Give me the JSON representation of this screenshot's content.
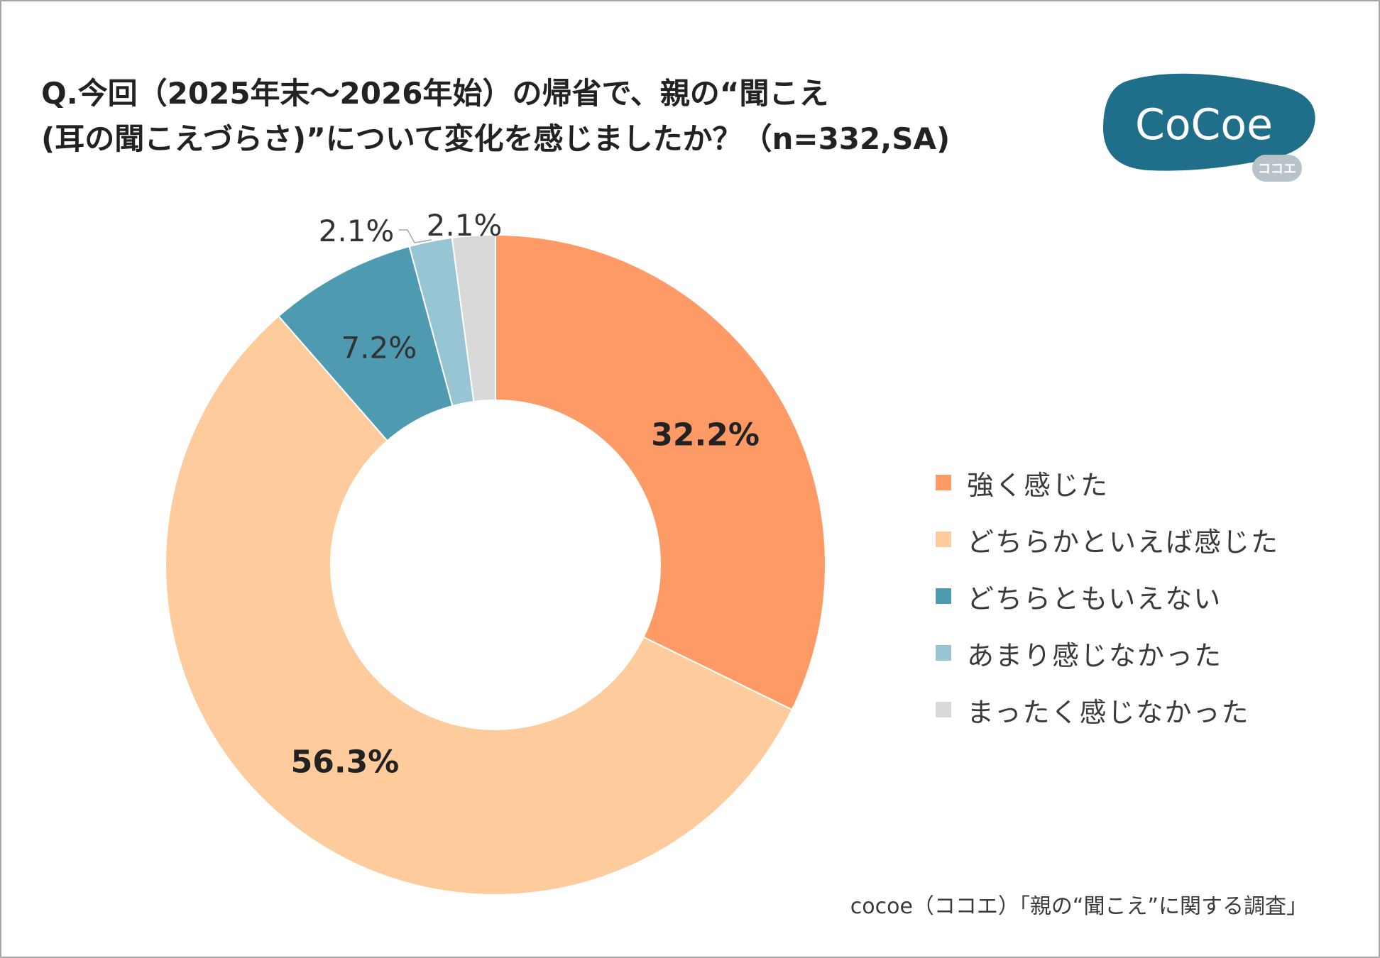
{
  "title": {
    "line1": "Q.今回（2025年末～2026年始）の帰省で、親の“聞こえ",
    "line2": "(耳の聞こえづらさ)”について変化を感じましたか？（n=332,SA)"
  },
  "logo": {
    "text": "CoCoe",
    "subtext": "ココエ",
    "color": "#1f6f8b"
  },
  "source": "cocoe（ココエ）「親の“聞こえ”に関する調査」",
  "chart_data": {
    "type": "pie",
    "variant": "donut",
    "start_angle_deg": 0,
    "direction": "clockwise",
    "categories": [
      "強く感じた",
      "どちらかといえば感じた",
      "どちらともいえない",
      "あまり感じなかった",
      "まったく感じなかった"
    ],
    "values": [
      32.2,
      56.3,
      7.2,
      2.1,
      2.1
    ],
    "value_labels": [
      "32.2%",
      "56.3%",
      "7.2%",
      "2.1%",
      "2.1%"
    ],
    "colors": [
      "#fe9a66",
      "#fdcb9c",
      "#4e9ab0",
      "#98c5d4",
      "#d9d9d9"
    ],
    "legend_position": "right",
    "label_style": [
      "bold",
      "bold",
      "normal",
      "normal",
      "normal"
    ]
  }
}
